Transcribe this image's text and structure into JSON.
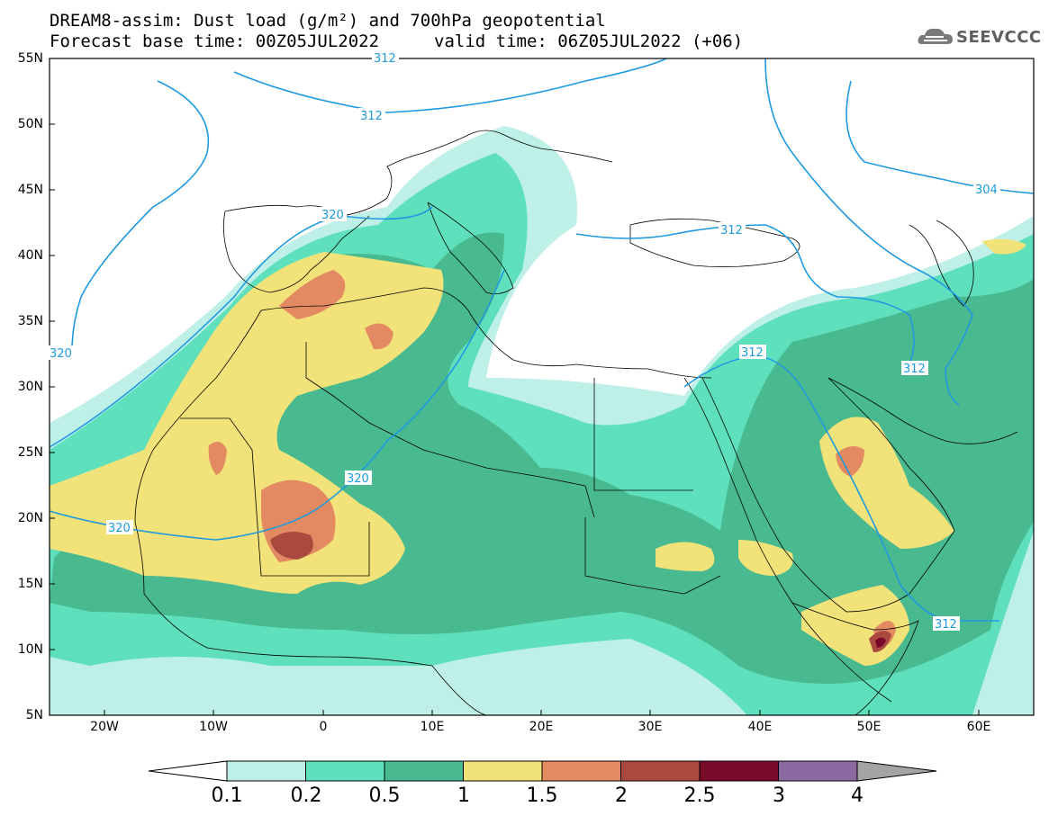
{
  "header": {
    "title_line1": "DREAM8-assim: Dust load (g/m²) and 700hPa geopotential",
    "title_line2": "Forecast base time: 00Z05JUL2022",
    "valid_time": "valid time: 06Z05JUL2022 (+06)",
    "logo_text": "SEEVCCC"
  },
  "axes": {
    "lat_labels": [
      "55N",
      "50N",
      "45N",
      "40N",
      "35N",
      "30N",
      "25N",
      "20N",
      "15N",
      "10N",
      "5N"
    ],
    "lon_labels": [
      "20W",
      "10W",
      "0",
      "10E",
      "20E",
      "30E",
      "40E",
      "50E",
      "60E"
    ]
  },
  "contour_labels": [
    "312",
    "320",
    "320",
    "320",
    "320",
    "312",
    "312",
    "312",
    "312",
    "304",
    "312"
  ],
  "colorbar": {
    "ticks": [
      "0.1",
      "0.2",
      "0.5",
      "1",
      "1.5",
      "2",
      "2.5",
      "3",
      "4"
    ],
    "colors": [
      "#bff0e8",
      "#5fe0bd",
      "#49b98f",
      "#f2e27a",
      "#e38a62",
      "#aa4a3e",
      "#7a0a2a",
      "#8b6aa2"
    ]
  },
  "colors": {
    "geopotential": "#1f9ae0",
    "borders": "#000000"
  }
}
